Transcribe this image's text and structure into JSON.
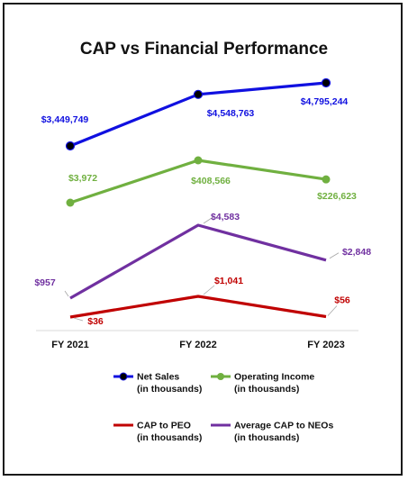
{
  "chart_data": {
    "type": "line",
    "title": "CAP vs Financial Performance",
    "categories": [
      "FY 2021",
      "FY 2022",
      "FY 2023"
    ],
    "colors": {
      "net_sales": "#1010e0",
      "operating_income": "#70b040",
      "cap_peo": "#c00000",
      "avg_cap_neos": "#7030a0"
    },
    "series": [
      {
        "key": "net_sales",
        "name": "Net Sales",
        "unit_note": "(in thousands)",
        "values": [
          3449749,
          4548763,
          4795244
        ],
        "labels": [
          "$3,449,749",
          "$4,548,763",
          "$4,795,244"
        ],
        "marker": "circle-black"
      },
      {
        "key": "operating_income",
        "name": "Operating Income",
        "unit_note": "(in thousands)",
        "values": [
          3972,
          408566,
          226623
        ],
        "labels": [
          "$3,972",
          "$408,566",
          "$226,623"
        ],
        "marker": "circle-green"
      },
      {
        "key": "cap_peo",
        "name": "CAP to PEO",
        "unit_note": "(in thousands)",
        "values": [
          36,
          1041,
          56
        ],
        "labels": [
          "$36",
          "$1,041",
          "$56"
        ],
        "marker": "none"
      },
      {
        "key": "avg_cap_neos",
        "name": "Average CAP to NEOs",
        "unit_note": "(in thousands)",
        "values": [
          957,
          4583,
          2848
        ],
        "labels": [
          "$957",
          "$4,583",
          "$2,848"
        ],
        "marker": "none"
      }
    ]
  }
}
